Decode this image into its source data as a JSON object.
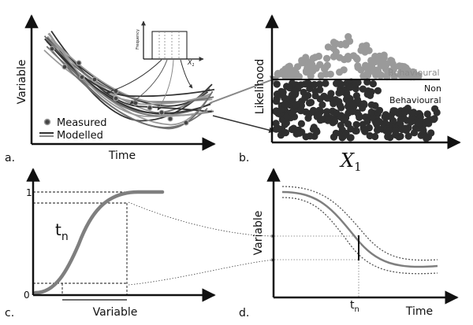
{
  "colors": {
    "axis": "#111111",
    "dark_line": "#333333",
    "mid_line": "#707070",
    "light_line": "#9a9a9a",
    "dot_dark": "#2f2f2f",
    "dot_light": "#9a9a9a",
    "thick_curve": "#7f7f7f"
  },
  "panel_a": {
    "label": "a.",
    "y_axis": "Variable",
    "x_axis": "Time",
    "legend_measured": "Measured",
    "legend_modelled": "Modelled",
    "inset_y": "Frequency",
    "inset_x": "X",
    "inset_x_sub": "1"
  },
  "panel_b": {
    "label": "b.",
    "y_axis": "Likelihood",
    "x_axis": "X",
    "x_axis_sub": "1",
    "region_upper": "Behavioural",
    "region_lower_1": "Non",
    "region_lower_2": "Behavioural"
  },
  "panel_c": {
    "label": "c.",
    "tick_top": "1",
    "tick_bottom": "0",
    "t_label": "t",
    "t_sub": "n",
    "x_axis": "Variable"
  },
  "panel_d": {
    "label": "d.",
    "y_axis": "Variable",
    "x_axis": "Time",
    "t_label": "t",
    "t_sub": "n"
  }
}
